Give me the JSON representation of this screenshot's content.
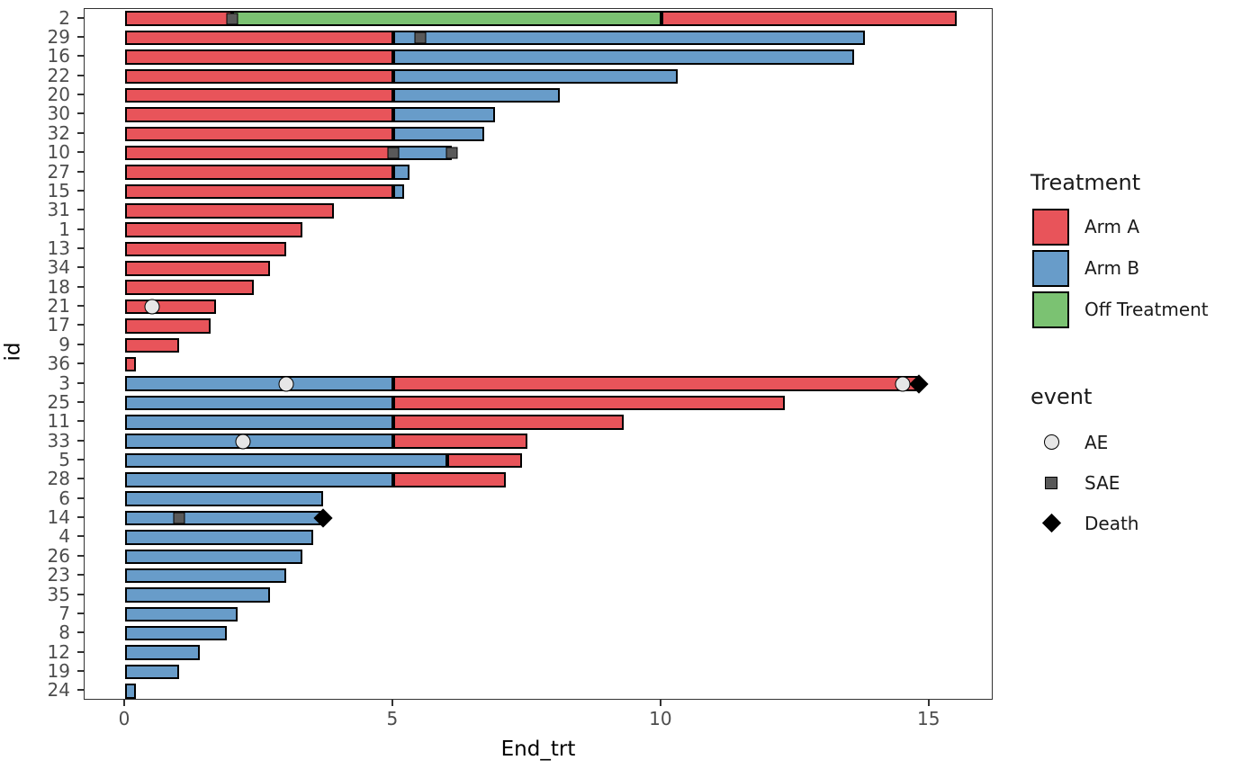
{
  "colors": {
    "arm": {
      "Arm A": "#E8545A",
      "Arm B": "#689CC9",
      "Off Treatment": "#7BC272"
    },
    "ae_fill": "#E6E6E6",
    "sae_fill": "#595959",
    "death_fill": "#000000",
    "bar_stroke": "#000000",
    "axis_text": "#4d4d4d",
    "panel_border": "#333333"
  },
  "legend": {
    "treatment_title": "Treatment",
    "treatment_items": [
      {
        "label": "Arm A",
        "color": "#E8545A"
      },
      {
        "label": "Arm B",
        "color": "#689CC9"
      },
      {
        "label": "Off Treatment",
        "color": "#7BC272"
      }
    ],
    "event_title": "event",
    "event_items": [
      {
        "label": "AE",
        "marker": "ae"
      },
      {
        "label": "SAE",
        "marker": "sae"
      },
      {
        "label": "Death",
        "marker": "death"
      }
    ]
  },
  "chart_data": {
    "type": "bar",
    "orientation": "horizontal-stacked-swimmer",
    "xlabel": "End_trt",
    "ylabel": "id",
    "xlim": [
      -0.755,
      16.195
    ],
    "x_ticks": [
      0,
      5,
      10,
      15
    ],
    "grid": false,
    "legend_position": "right",
    "rows": [
      {
        "id": "2",
        "segments": [
          {
            "arm": "Arm A",
            "start": 0,
            "end": 2
          },
          {
            "arm": "Off Treatment",
            "start": 2,
            "end": 10
          },
          {
            "arm": "Arm A",
            "start": 10,
            "end": 15.5
          }
        ],
        "events": [
          {
            "type": "SAE",
            "x": 2
          }
        ]
      },
      {
        "id": "29",
        "segments": [
          {
            "arm": "Arm A",
            "start": 0,
            "end": 5
          },
          {
            "arm": "Arm B",
            "start": 5,
            "end": 13.8
          }
        ],
        "events": [
          {
            "type": "SAE",
            "x": 5.5
          }
        ]
      },
      {
        "id": "16",
        "segments": [
          {
            "arm": "Arm A",
            "start": 0,
            "end": 5
          },
          {
            "arm": "Arm B",
            "start": 5,
            "end": 13.6
          }
        ],
        "events": []
      },
      {
        "id": "22",
        "segments": [
          {
            "arm": "Arm A",
            "start": 0,
            "end": 5
          },
          {
            "arm": "Arm B",
            "start": 5,
            "end": 10.3
          }
        ],
        "events": []
      },
      {
        "id": "20",
        "segments": [
          {
            "arm": "Arm A",
            "start": 0,
            "end": 5
          },
          {
            "arm": "Arm B",
            "start": 5,
            "end": 8.1
          }
        ],
        "events": []
      },
      {
        "id": "30",
        "segments": [
          {
            "arm": "Arm A",
            "start": 0,
            "end": 5
          },
          {
            "arm": "Arm B",
            "start": 5,
            "end": 6.9
          }
        ],
        "events": []
      },
      {
        "id": "32",
        "segments": [
          {
            "arm": "Arm A",
            "start": 0,
            "end": 5
          },
          {
            "arm": "Arm B",
            "start": 5,
            "end": 6.7
          }
        ],
        "events": []
      },
      {
        "id": "10",
        "segments": [
          {
            "arm": "Arm A",
            "start": 0,
            "end": 5
          },
          {
            "arm": "Arm B",
            "start": 5,
            "end": 6.1
          }
        ],
        "events": [
          {
            "type": "SAE",
            "x": 5
          },
          {
            "type": "SAE",
            "x": 6.1
          }
        ]
      },
      {
        "id": "27",
        "segments": [
          {
            "arm": "Arm A",
            "start": 0,
            "end": 5
          },
          {
            "arm": "Arm B",
            "start": 5,
            "end": 5.3
          }
        ],
        "events": []
      },
      {
        "id": "15",
        "segments": [
          {
            "arm": "Arm A",
            "start": 0,
            "end": 5
          },
          {
            "arm": "Arm B",
            "start": 5,
            "end": 5.2
          }
        ],
        "events": []
      },
      {
        "id": "31",
        "segments": [
          {
            "arm": "Arm A",
            "start": 0,
            "end": 3.9
          }
        ],
        "events": []
      },
      {
        "id": "1",
        "segments": [
          {
            "arm": "Arm A",
            "start": 0,
            "end": 3.3
          }
        ],
        "events": []
      },
      {
        "id": "13",
        "segments": [
          {
            "arm": "Arm A",
            "start": 0,
            "end": 3.0
          }
        ],
        "events": []
      },
      {
        "id": "34",
        "segments": [
          {
            "arm": "Arm A",
            "start": 0,
            "end": 2.7
          }
        ],
        "events": []
      },
      {
        "id": "18",
        "segments": [
          {
            "arm": "Arm A",
            "start": 0,
            "end": 2.4
          }
        ],
        "events": []
      },
      {
        "id": "21",
        "segments": [
          {
            "arm": "Arm A",
            "start": 0,
            "end": 1.7
          }
        ],
        "events": [
          {
            "type": "AE",
            "x": 0.5
          }
        ]
      },
      {
        "id": "17",
        "segments": [
          {
            "arm": "Arm A",
            "start": 0,
            "end": 1.6
          }
        ],
        "events": []
      },
      {
        "id": "9",
        "segments": [
          {
            "arm": "Arm A",
            "start": 0,
            "end": 1.0
          }
        ],
        "events": []
      },
      {
        "id": "36",
        "segments": [
          {
            "arm": "Arm A",
            "start": 0,
            "end": 0.2
          }
        ],
        "events": []
      },
      {
        "id": "3",
        "segments": [
          {
            "arm": "Arm B",
            "start": 0,
            "end": 5
          },
          {
            "arm": "Arm A",
            "start": 5,
            "end": 14.8
          }
        ],
        "events": [
          {
            "type": "AE",
            "x": 3
          },
          {
            "type": "AE",
            "x": 14.5
          },
          {
            "type": "Death",
            "x": 14.8
          }
        ]
      },
      {
        "id": "25",
        "segments": [
          {
            "arm": "Arm B",
            "start": 0,
            "end": 5
          },
          {
            "arm": "Arm A",
            "start": 5,
            "end": 12.3
          }
        ],
        "events": []
      },
      {
        "id": "11",
        "segments": [
          {
            "arm": "Arm B",
            "start": 0,
            "end": 5
          },
          {
            "arm": "Arm A",
            "start": 5,
            "end": 9.3
          }
        ],
        "events": []
      },
      {
        "id": "33",
        "segments": [
          {
            "arm": "Arm B",
            "start": 0,
            "end": 5
          },
          {
            "arm": "Arm A",
            "start": 5,
            "end": 7.5
          }
        ],
        "events": [
          {
            "type": "AE",
            "x": 2.2
          }
        ]
      },
      {
        "id": "5",
        "segments": [
          {
            "arm": "Arm B",
            "start": 0,
            "end": 6
          },
          {
            "arm": "Arm A",
            "start": 6,
            "end": 7.4
          }
        ],
        "events": []
      },
      {
        "id": "28",
        "segments": [
          {
            "arm": "Arm B",
            "start": 0,
            "end": 5
          },
          {
            "arm": "Arm A",
            "start": 5,
            "end": 7.1
          }
        ],
        "events": []
      },
      {
        "id": "6",
        "segments": [
          {
            "arm": "Arm B",
            "start": 0,
            "end": 3.7
          }
        ],
        "events": []
      },
      {
        "id": "14",
        "segments": [
          {
            "arm": "Arm B",
            "start": 0,
            "end": 3.7
          }
        ],
        "events": [
          {
            "type": "SAE",
            "x": 1
          },
          {
            "type": "Death",
            "x": 3.7
          }
        ]
      },
      {
        "id": "4",
        "segments": [
          {
            "arm": "Arm B",
            "start": 0,
            "end": 3.5
          }
        ],
        "events": []
      },
      {
        "id": "26",
        "segments": [
          {
            "arm": "Arm B",
            "start": 0,
            "end": 3.3
          }
        ],
        "events": []
      },
      {
        "id": "23",
        "segments": [
          {
            "arm": "Arm B",
            "start": 0,
            "end": 3.0
          }
        ],
        "events": []
      },
      {
        "id": "35",
        "segments": [
          {
            "arm": "Arm B",
            "start": 0,
            "end": 2.7
          }
        ],
        "events": []
      },
      {
        "id": "7",
        "segments": [
          {
            "arm": "Arm B",
            "start": 0,
            "end": 2.1
          }
        ],
        "events": []
      },
      {
        "id": "8",
        "segments": [
          {
            "arm": "Arm B",
            "start": 0,
            "end": 1.9
          }
        ],
        "events": []
      },
      {
        "id": "12",
        "segments": [
          {
            "arm": "Arm B",
            "start": 0,
            "end": 1.4
          }
        ],
        "events": []
      },
      {
        "id": "19",
        "segments": [
          {
            "arm": "Arm B",
            "start": 0,
            "end": 1.0
          }
        ],
        "events": []
      },
      {
        "id": "24",
        "segments": [
          {
            "arm": "Arm B",
            "start": 0,
            "end": 0.2
          }
        ],
        "events": []
      }
    ]
  }
}
